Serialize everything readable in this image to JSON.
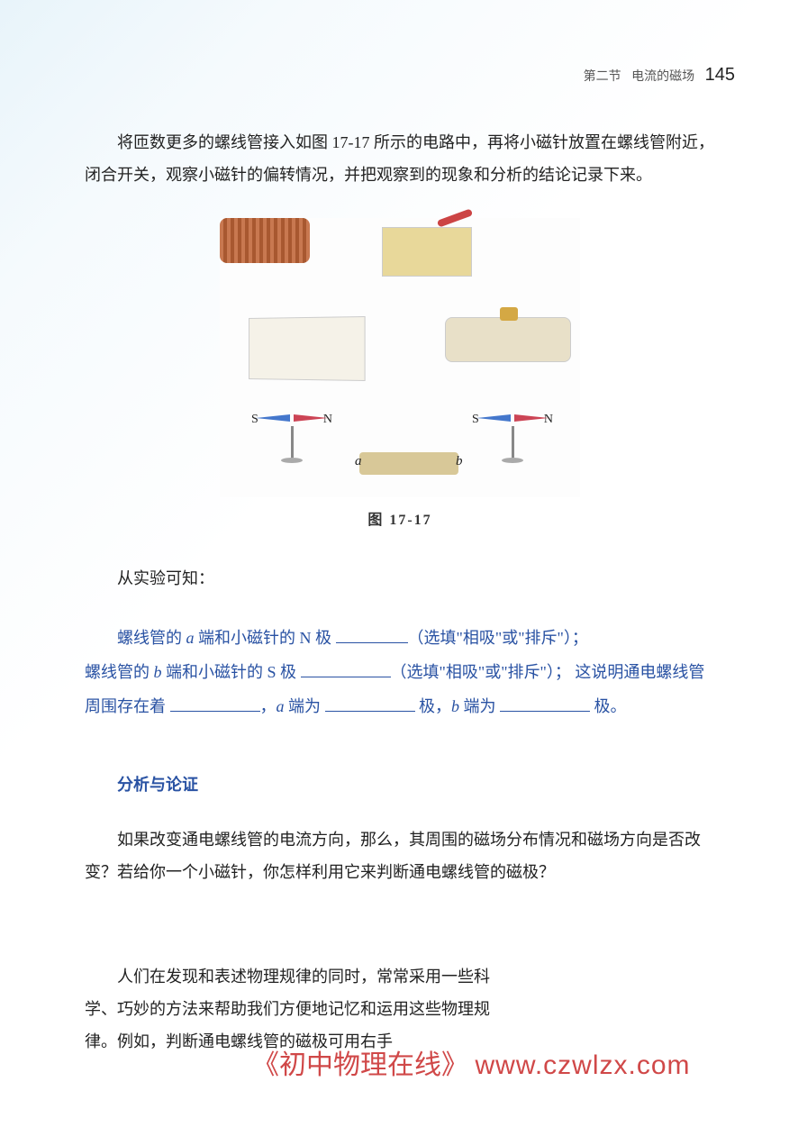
{
  "header": {
    "section": "第二节",
    "title": "电流的磁场",
    "page": "145"
  },
  "para1": "将匝数更多的螺线管接入如图 17-17 所示的电路中，再将小磁针放置在螺线管附近，闭合开关，观察小磁针的偏转情况，并把观察到的现象和分析的结论记录下来。",
  "figure": {
    "caption": "图  17-17",
    "compass_s": "S",
    "compass_n": "N",
    "label_a": "a",
    "label_b": "b"
  },
  "exp_result": "从实验可知：",
  "fill_in": {
    "line1_pre": "螺线管的 ",
    "line1_a": "a",
    "line1_mid": " 端和小磁针的 N 极 ",
    "line1_end": "（选填\"相吸\"或\"排斥\"）；",
    "line2_pre": "螺线管的 ",
    "line2_b": "b",
    "line2_mid": " 端和小磁针的 S 极 ",
    "line2_end": "（选填\"相吸\"或\"排斥\"）；",
    "line3_pre": "这说明通电螺线管周围存在着 ",
    "line3_mid1": "，",
    "line3_a": "a",
    "line3_mid2": " 端为 ",
    "line3_mid3": " 极，",
    "line3_b": "b",
    "line3_end": " 端为 ",
    "line3_last": " 极。"
  },
  "section_title": "分析与论证",
  "para_analysis": "如果改变通电螺线管的电流方向，那么，其周围的磁场分布情况和磁场方向是否改变？若给你一个小磁针，你怎样利用它来判断通电螺线管的磁极？",
  "para_last": "人们在发现和表述物理规律的同时，常常采用一些科学、巧妙的方法来帮助我们方便地记忆和运用这些物理规律。例如，判断通电螺线管的磁极可用右手",
  "watermark": {
    "text": "《初中物理在线》",
    "url": "www.czwlzx.com"
  }
}
